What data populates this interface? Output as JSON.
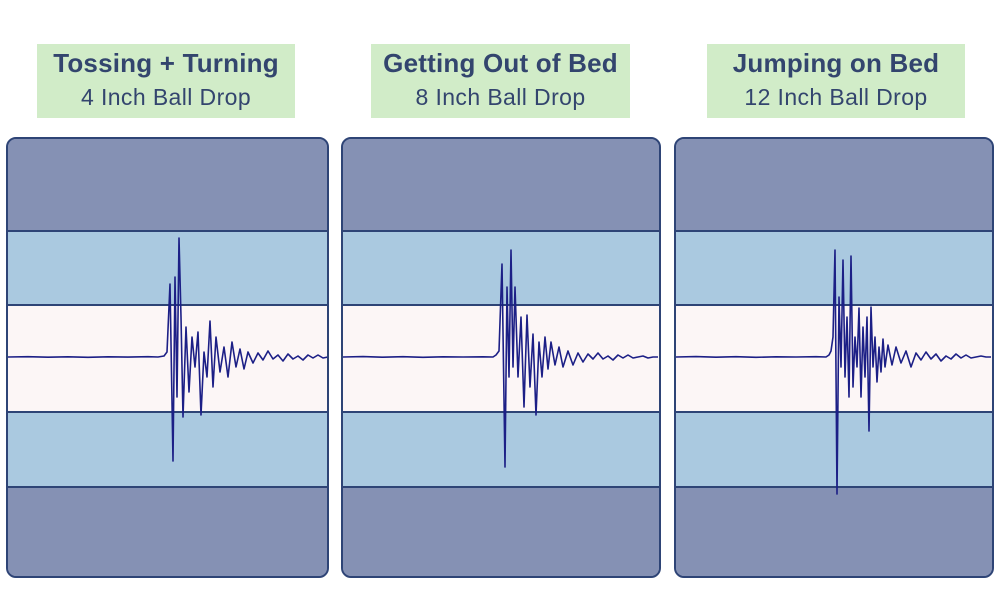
{
  "panels": [
    {
      "title": "Tossing + Turning",
      "subtitle": "4 Inch Ball Drop"
    },
    {
      "title": "Getting Out of Bed",
      "subtitle": "8 Inch Ball Drop"
    },
    {
      "title": "Jumping on Bed",
      "subtitle": "12 Inch Ball Drop"
    }
  ],
  "colors": {
    "label_bg": "#d1ecc8",
    "label_text": "#33456e",
    "outer_band": "#8591b4",
    "middle_band": "#aac9e0",
    "center_band": "#fcf6f6",
    "border": "#2e4476",
    "trace": "#1c1f86"
  },
  "chart_data": [
    {
      "type": "line",
      "series": [
        {
          "x": [
            0,
            20,
            40,
            60,
            80,
            100,
            120,
            140,
            150,
            156,
            159,
            162,
            165,
            167,
            169,
            171,
            173,
            175,
            178,
            181,
            184,
            187,
            190,
            193,
            196,
            199,
            202,
            205,
            208,
            212,
            216,
            220,
            224,
            228,
            232,
            236,
            240,
            245,
            250,
            255,
            260,
            265,
            270,
            275,
            280,
            285,
            290,
            295,
            300,
            305,
            310,
            315,
            320
          ],
          "y": [
            0,
            0.3,
            -0.2,
            0.2,
            -0.3,
            0.2,
            -0.1,
            0.3,
            0,
            1,
            5,
            73,
            -104,
            80,
            -40,
            119,
            40,
            -60,
            30,
            -35,
            20,
            -10,
            25,
            -58,
            5,
            -20,
            36,
            -30,
            20,
            -15,
            10,
            -20,
            15,
            -10,
            8,
            -12,
            5,
            -6,
            4,
            -3,
            6,
            -2,
            2,
            -4,
            3,
            -2,
            1,
            -3,
            2,
            -1,
            2,
            -1,
            0
          ]
        }
      ]
    },
    {
      "type": "line",
      "series": [
        {
          "x": [
            0,
            20,
            40,
            60,
            80,
            100,
            120,
            140,
            150,
            153,
            156,
            159,
            162,
            164,
            166,
            168,
            170,
            172,
            175,
            178,
            181,
            184,
            187,
            190,
            193,
            196,
            199,
            202,
            205,
            208,
            212,
            216,
            220,
            225,
            230,
            235,
            240,
            245,
            250,
            255,
            260,
            265,
            270,
            275,
            280,
            285,
            290,
            295,
            300,
            305,
            310,
            315
          ],
          "y": [
            0,
            0.4,
            -0.2,
            0.3,
            -0.3,
            0.2,
            0,
            0.2,
            0,
            2,
            6,
            93,
            -110,
            70,
            -20,
            107,
            -10,
            70,
            -20,
            40,
            -50,
            42,
            -30,
            23,
            -58,
            15,
            -20,
            20,
            -12,
            15,
            -8,
            10,
            -10,
            6,
            -8,
            4,
            -5,
            3,
            -2,
            4,
            -2,
            1,
            -3,
            2,
            -1,
            2,
            -1,
            0,
            1,
            -1,
            0,
            0
          ]
        }
      ]
    },
    {
      "type": "line",
      "series": [
        {
          "x": [
            0,
            20,
            40,
            60,
            80,
            100,
            120,
            140,
            150,
            153,
            155,
            157,
            159,
            161,
            163,
            165,
            167,
            169,
            171,
            173,
            175,
            177,
            179,
            181,
            183,
            185,
            187,
            189,
            191,
            193,
            195,
            197,
            199,
            201,
            203,
            205,
            207,
            209,
            212,
            216,
            220,
            225,
            230,
            235,
            240,
            245,
            250,
            255,
            260,
            265,
            270,
            275,
            280,
            285,
            290,
            295,
            300,
            305,
            310,
            315
          ],
          "y": [
            0,
            0.4,
            -0.2,
            0.3,
            -0.3,
            0.2,
            0,
            0.3,
            0,
            2,
            6,
            20,
            107,
            -137,
            60,
            -10,
            97,
            -20,
            40,
            -40,
            101,
            -30,
            20,
            -10,
            49,
            -40,
            30,
            -20,
            40,
            -74,
            50,
            -10,
            20,
            -25,
            10,
            -15,
            18,
            -10,
            12,
            -8,
            10,
            -6,
            6,
            -10,
            4,
            -3,
            5,
            -2,
            3,
            -4,
            1,
            -2,
            3,
            -1,
            2,
            -1,
            0,
            1,
            0,
            0
          ]
        }
      ]
    }
  ]
}
